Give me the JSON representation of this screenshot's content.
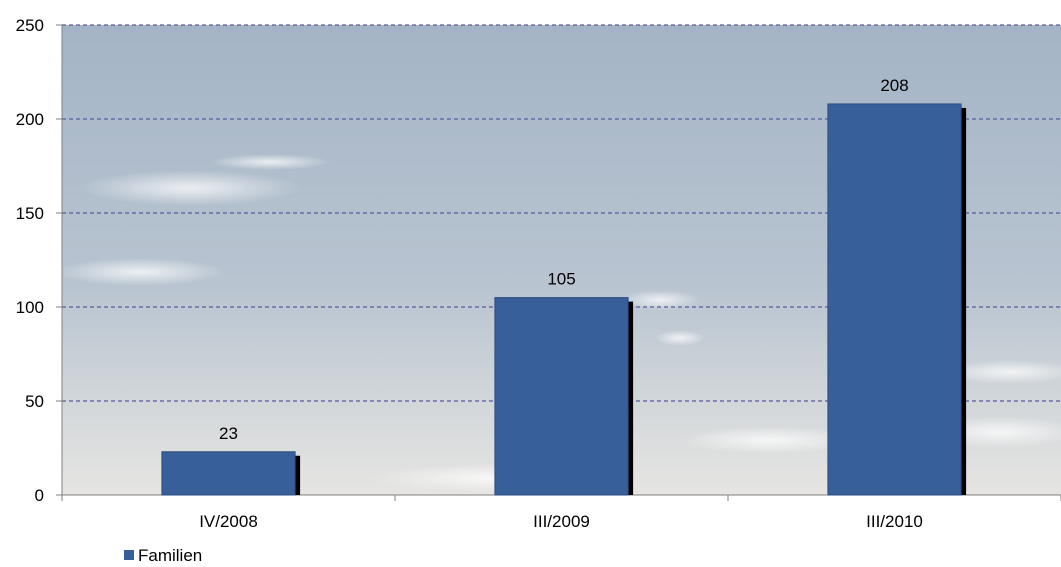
{
  "chart_data": {
    "type": "bar",
    "categories": [
      "IV/2008",
      "III/2009",
      "III/2010"
    ],
    "series": [
      {
        "name": "Familien",
        "values": [
          23,
          105,
          208
        ]
      }
    ],
    "data_labels": [
      "23",
      "105",
      "208"
    ],
    "y_ticks": [
      "0",
      "50",
      "100",
      "150",
      "200",
      "250"
    ],
    "y_tick_values": [
      0,
      50,
      100,
      150,
      200,
      250
    ],
    "ylim": [
      0,
      250
    ],
    "grid": true,
    "legend_position": "bottom-left",
    "title": "",
    "xlabel": "",
    "ylabel": ""
  },
  "colors": {
    "bar_fill": "#375f99",
    "bar_shadow": "#000000",
    "gridline": "#5a5aa0",
    "sky_top": "#a7b7c9",
    "sky_bottom": "#e4e4e2"
  }
}
